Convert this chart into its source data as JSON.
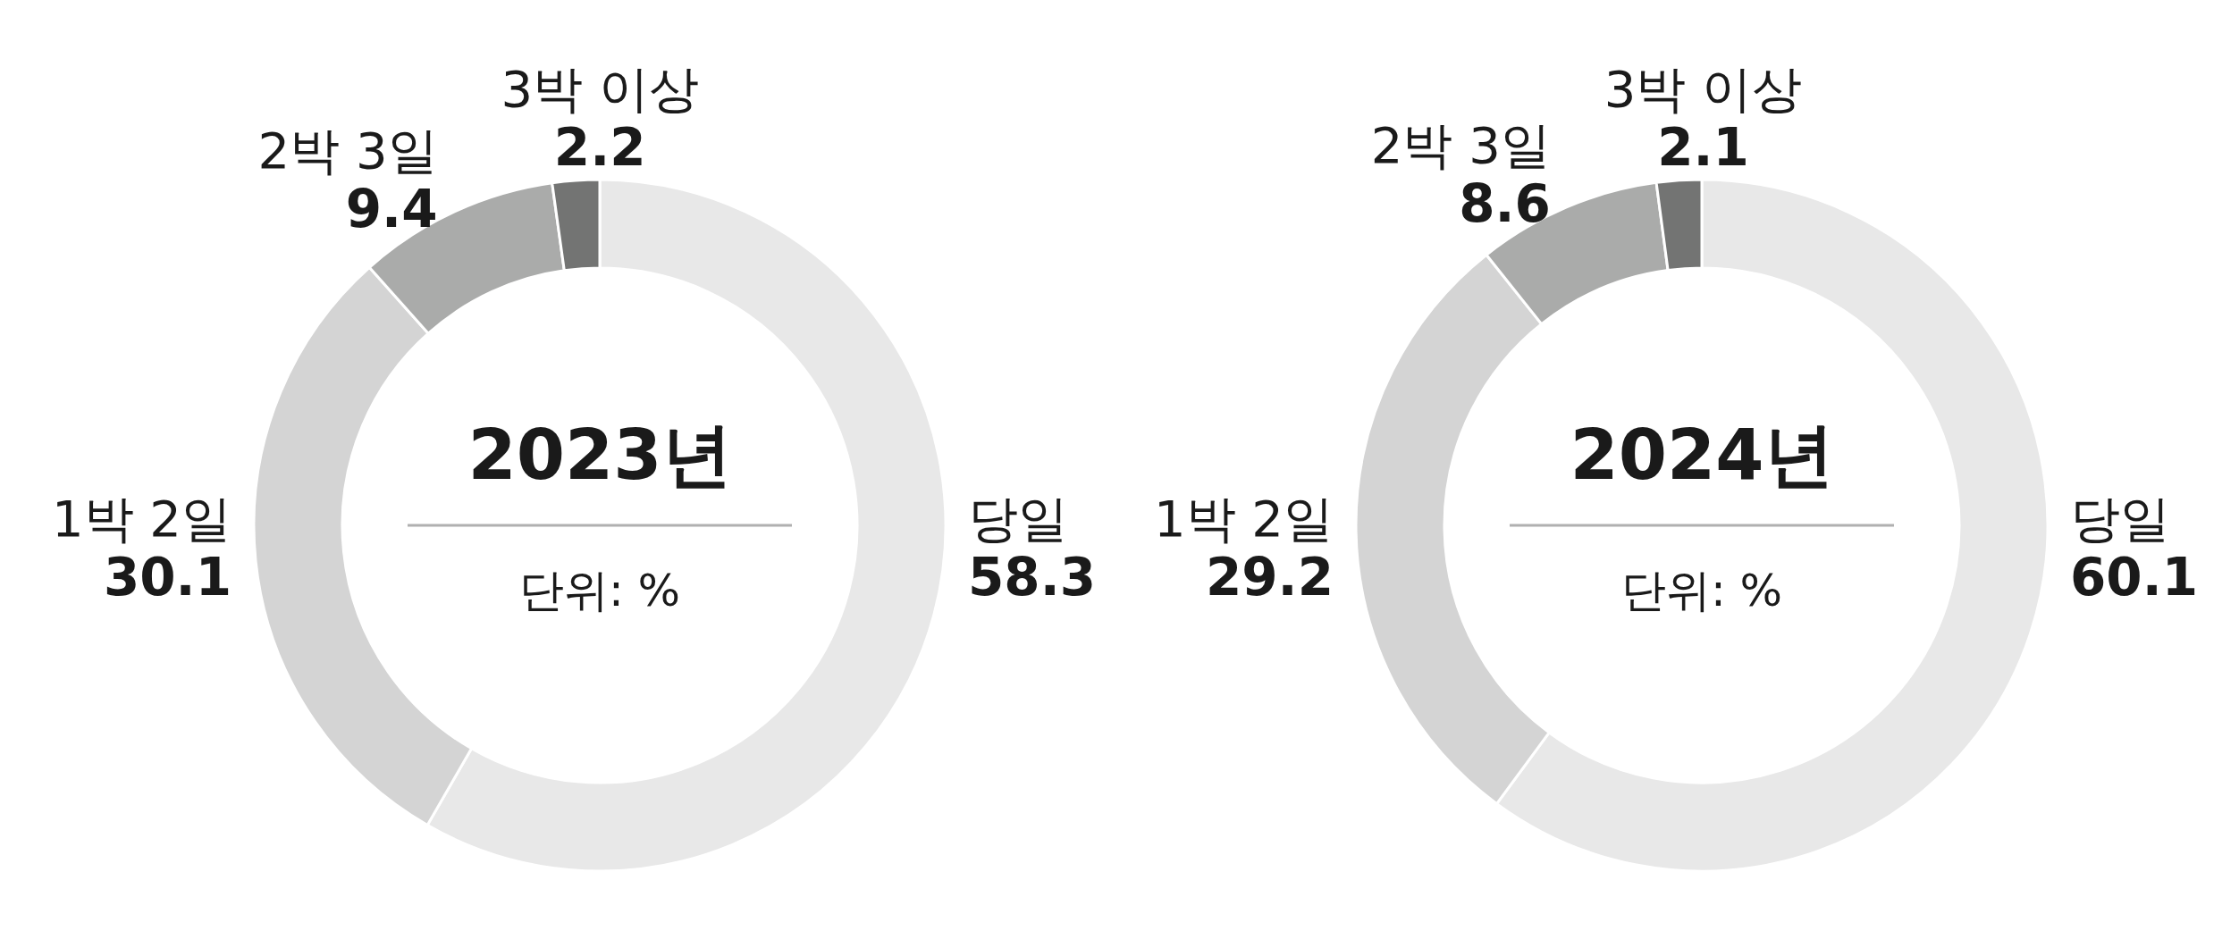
{
  "chart_data": [
    {
      "type": "donut",
      "title": "2023년",
      "categories": [
        "당일",
        "1박 2일",
        "2박 3일",
        "3박 이상"
      ],
      "values": [
        58.3,
        30.1,
        9.4,
        2.2
      ],
      "colors": [
        "#e8e8e8",
        "#d4d4d4",
        "#aaabaa",
        "#737473"
      ],
      "data_labels": true,
      "annotations": [
        "단위: %"
      ]
    },
    {
      "type": "donut",
      "title": "2024년",
      "categories": [
        "당일",
        "1박 2일",
        "2박 3일",
        "3박 이상"
      ],
      "values": [
        60.1,
        29.2,
        8.6,
        2.1
      ],
      "colors": [
        "#e8e8e8",
        "#d4d4d4",
        "#aaabaa",
        "#737473"
      ],
      "data_labels": true,
      "annotations": [
        "단위: %"
      ]
    }
  ]
}
